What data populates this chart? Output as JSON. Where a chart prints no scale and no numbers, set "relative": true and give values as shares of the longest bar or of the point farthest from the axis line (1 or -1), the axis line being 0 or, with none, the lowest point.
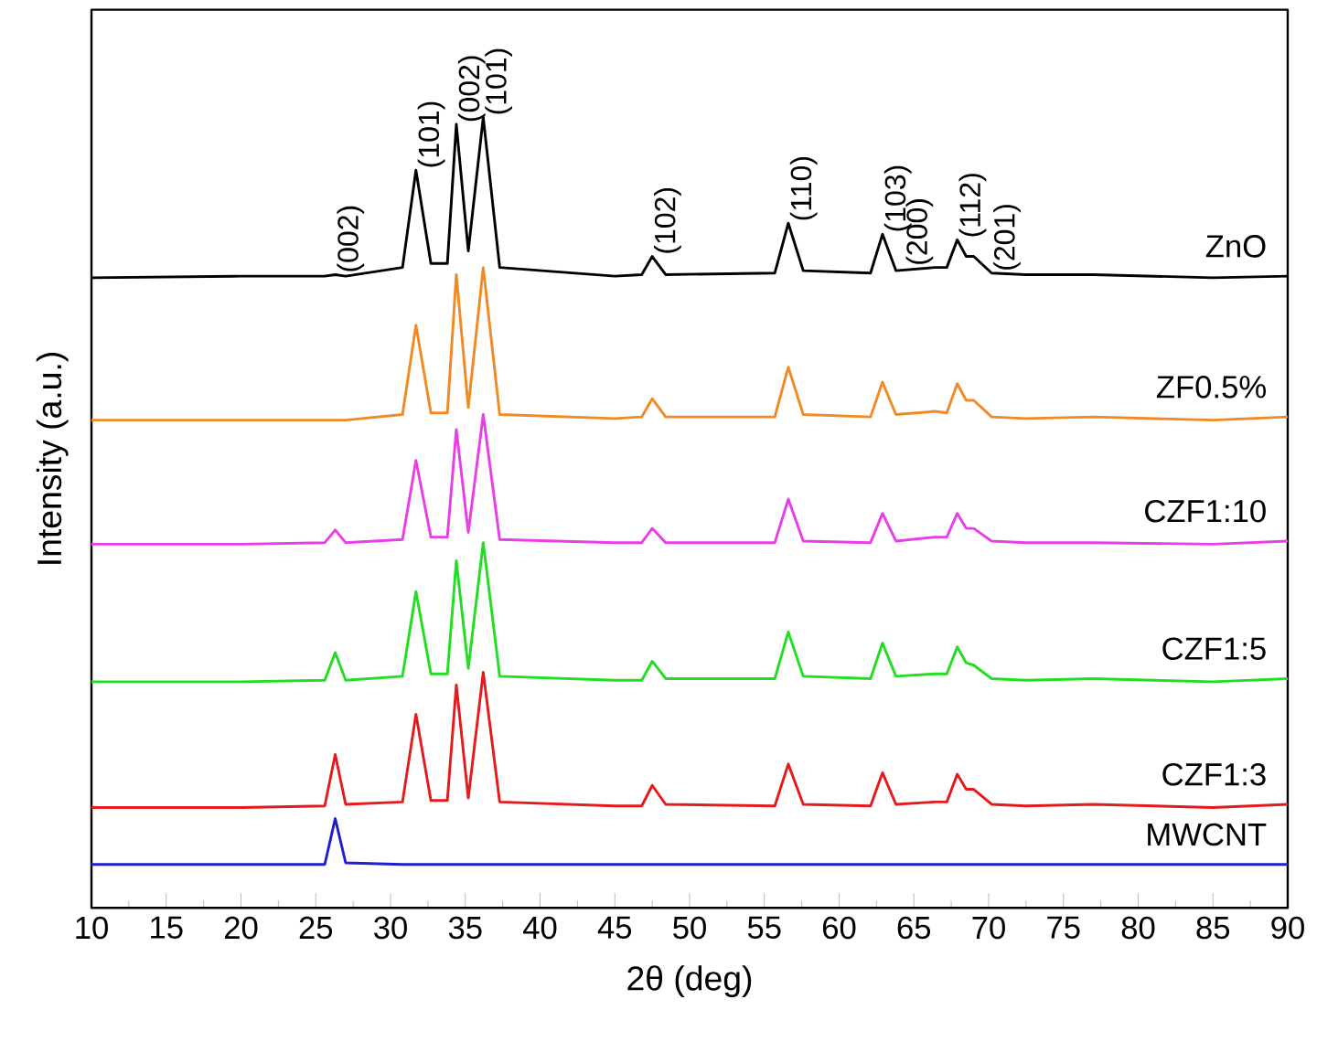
{
  "chart_data": {
    "type": "line",
    "relative": true,
    "xlabel": "2θ (deg)",
    "ylabel": "Intensity (a.u.)",
    "xlim": [
      10,
      90
    ],
    "xticks": [
      10,
      15,
      20,
      25,
      30,
      35,
      40,
      45,
      50,
      55,
      60,
      65,
      70,
      75,
      80,
      85,
      90
    ],
    "x": [
      10,
      20,
      25.6,
      26.3,
      27,
      30.8,
      31.7,
      32.7,
      33.8,
      34.4,
      35.2,
      36.2,
      37.3,
      45,
      46.8,
      47.5,
      48.4,
      55.7,
      56.6,
      57.6,
      62.1,
      62.9,
      63.8,
      66.4,
      67.2,
      67.9,
      68.5,
      69.0,
      70.2,
      72.5,
      77,
      85,
      90
    ],
    "series": [
      {
        "name": "ZnO",
        "color": "#000000",
        "values": [
          0.797,
          0.799,
          0.799,
          0.801,
          0.799,
          0.81,
          0.933,
          0.815,
          0.815,
          0.991,
          0.831,
          1.0,
          0.81,
          0.799,
          0.801,
          0.824,
          0.801,
          0.803,
          0.866,
          0.806,
          0.803,
          0.852,
          0.806,
          0.81,
          0.81,
          0.845,
          0.824,
          0.824,
          0.803,
          0.801,
          0.801,
          0.797,
          0.799
        ]
      },
      {
        "name": "ZF0.5%",
        "color": "#f08a24",
        "values": [
          0.617,
          0.617,
          0.617,
          0.617,
          0.617,
          0.624,
          0.737,
          0.626,
          0.626,
          0.801,
          0.633,
          0.81,
          0.624,
          0.619,
          0.621,
          0.644,
          0.621,
          0.621,
          0.684,
          0.624,
          0.621,
          0.665,
          0.624,
          0.628,
          0.626,
          0.663,
          0.642,
          0.642,
          0.621,
          0.619,
          0.621,
          0.617,
          0.621
        ]
      },
      {
        "name": "CZF1:10",
        "color": "#e83ee8",
        "values": [
          0.46,
          0.46,
          0.462,
          0.478,
          0.462,
          0.466,
          0.566,
          0.469,
          0.469,
          0.605,
          0.475,
          0.624,
          0.466,
          0.462,
          0.462,
          0.48,
          0.462,
          0.462,
          0.517,
          0.464,
          0.462,
          0.499,
          0.464,
          0.469,
          0.469,
          0.499,
          0.48,
          0.48,
          0.464,
          0.462,
          0.462,
          0.46,
          0.464
        ]
      },
      {
        "name": "CZF1:5",
        "color": "#22dd22",
        "values": [
          0.286,
          0.286,
          0.288,
          0.323,
          0.288,
          0.293,
          0.4,
          0.296,
          0.296,
          0.439,
          0.303,
          0.462,
          0.293,
          0.288,
          0.288,
          0.312,
          0.29,
          0.29,
          0.349,
          0.293,
          0.29,
          0.335,
          0.293,
          0.296,
          0.296,
          0.33,
          0.31,
          0.307,
          0.29,
          0.288,
          0.29,
          0.286,
          0.29
        ]
      },
      {
        "name": "CZF1:3",
        "color": "#e41a1c",
        "values": [
          0.127,
          0.127,
          0.129,
          0.194,
          0.131,
          0.134,
          0.245,
          0.136,
          0.136,
          0.282,
          0.139,
          0.298,
          0.134,
          0.129,
          0.129,
          0.155,
          0.131,
          0.129,
          0.182,
          0.131,
          0.129,
          0.171,
          0.131,
          0.134,
          0.134,
          0.169,
          0.15,
          0.15,
          0.131,
          0.129,
          0.131,
          0.127,
          0.131
        ]
      },
      {
        "name": "MWCNT",
        "color": "#1f1fd0",
        "values": [
          0.055,
          0.055,
          0.055,
          0.113,
          0.057,
          0.055,
          0.055,
          0.055,
          0.055,
          0.055,
          0.055,
          0.055,
          0.055,
          0.055,
          0.055,
          0.055,
          0.055,
          0.055,
          0.055,
          0.055,
          0.055,
          0.055,
          0.055,
          0.055,
          0.055,
          0.055,
          0.055,
          0.055,
          0.055,
          0.055,
          0.055,
          0.055,
          0.055
        ]
      }
    ],
    "annotations": [
      {
        "text": "(002)",
        "x": 26.3,
        "y": 0.801
      },
      {
        "text": "(101)",
        "x": 31.7,
        "y": 0.933
      },
      {
        "text": "(002)",
        "x": 34.4,
        "y": 0.991
      },
      {
        "text": "(101)",
        "x": 36.2,
        "y": 1.0
      },
      {
        "text": "(102)",
        "x": 47.5,
        "y": 0.824
      },
      {
        "text": "(110)",
        "x": 56.6,
        "y": 0.866
      },
      {
        "text": "(103)",
        "x": 62.9,
        "y": 0.852
      },
      {
        "text": "(200)",
        "x": 66.4,
        "y": 0.81
      },
      {
        "text": "(112)",
        "x": 67.9,
        "y": 0.845
      },
      {
        "text": "(201)",
        "x": 70.2,
        "y": 0.803
      }
    ]
  }
}
